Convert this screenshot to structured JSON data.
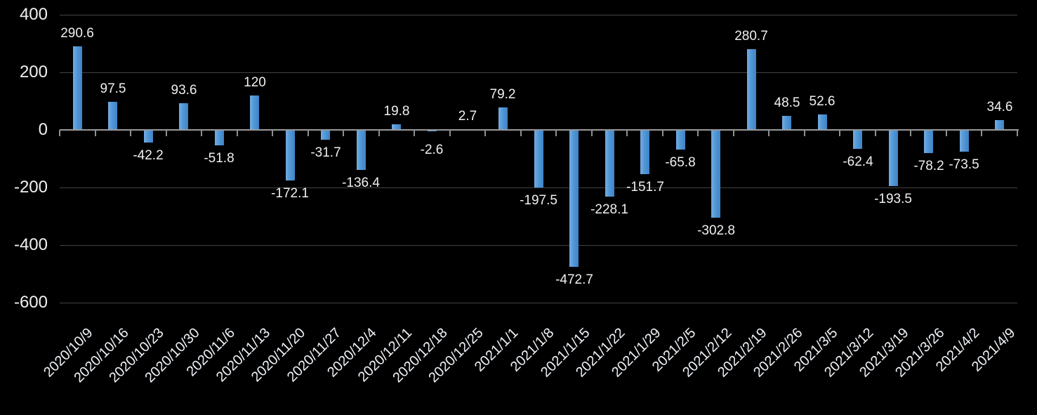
{
  "chart_data": {
    "type": "bar",
    "title": "",
    "xlabel": "",
    "ylabel": "",
    "legend_position": "none",
    "grid": true,
    "ylim": [
      -600,
      400
    ],
    "yticks": [
      400,
      200,
      0,
      -200,
      -400,
      -600
    ],
    "categories": [
      "2020/10/9",
      "2020/10/16",
      "2020/10/23",
      "2020/10/30",
      "2020/11/6",
      "2020/11/13",
      "2020/11/20",
      "2020/11/27",
      "2020/12/4",
      "2020/12/11",
      "2020/12/18",
      "2020/12/25",
      "2021/1/1",
      "2021/1/8",
      "2021/1/15",
      "2021/1/22",
      "2021/1/29",
      "2021/2/5",
      "2021/2/12",
      "2021/2/19",
      "2021/2/26",
      "2021/3/5",
      "2021/3/12",
      "2021/3/19",
      "2021/3/26",
      "2021/4/2",
      "2021/4/9"
    ],
    "values": [
      290.6,
      97.5,
      -42.2,
      93.6,
      -51.8,
      120,
      -172.1,
      -31.7,
      -136.4,
      19.8,
      -2.6,
      2.7,
      79.2,
      -197.5,
      -472.7,
      -228.1,
      -151.7,
      -65.8,
      -302.8,
      280.7,
      48.5,
      52.6,
      -62.4,
      -193.5,
      -78.2,
      -73.5,
      34.6
    ],
    "labels": [
      "290.6",
      "97.5",
      "-42.2",
      "93.6",
      "-51.8",
      "120",
      "-172.1",
      "-31.7",
      "-136.4",
      "19.8",
      "-2.6",
      "2.7",
      "79.2",
      "-197.5",
      "-472.7",
      "-228.1",
      "-151.7",
      "-65.8",
      "-302.8",
      "280.7",
      "48.5",
      "52.6",
      "-62.4",
      "-193.5",
      "-78.2",
      "-73.5",
      "34.6"
    ],
    "colors": {
      "background": "#000000",
      "bar_gradient_left": "#78acdf",
      "bar_gradient_right": "#3f83c6",
      "gridline": "#434343",
      "axis_line": "#9a9a9a",
      "text": "#f0f0f0"
    }
  }
}
